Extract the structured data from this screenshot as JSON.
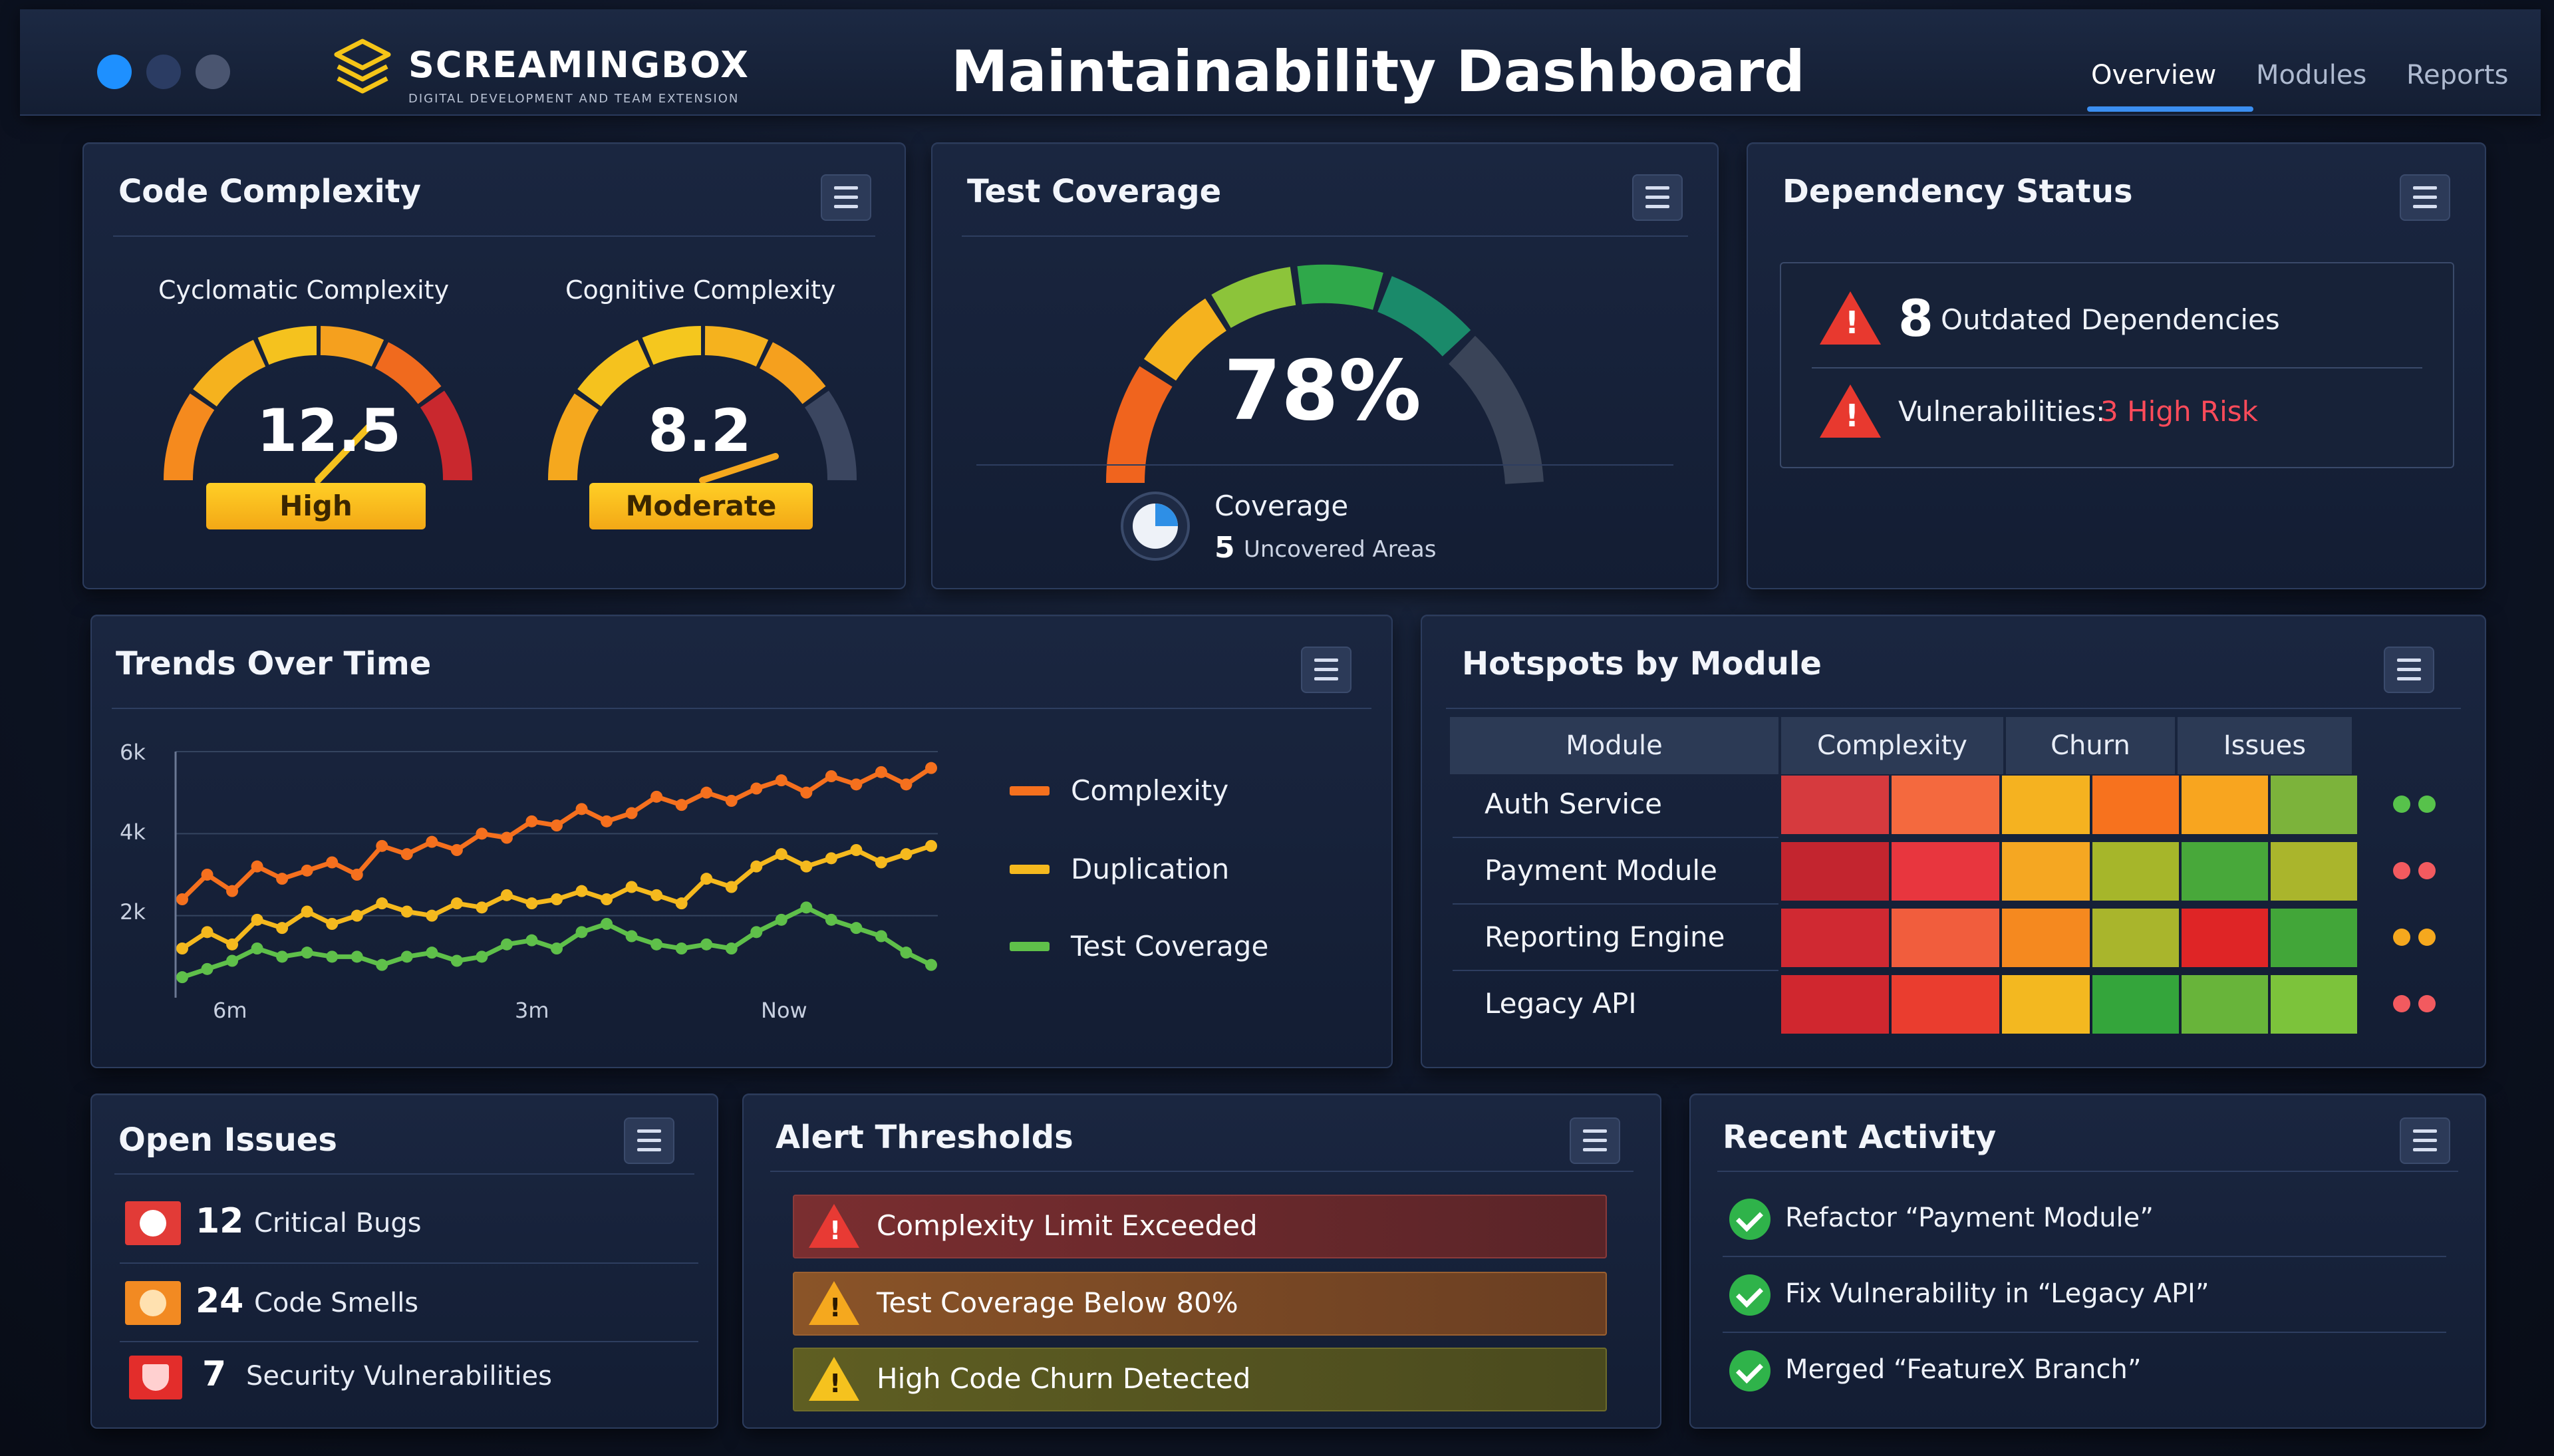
{
  "window": {
    "dots": [
      "#1e90ff",
      "#2b3c63",
      "#4a5570"
    ]
  },
  "brand": {
    "name": "SCREAMINGBOX",
    "tagline": "DIGITAL DEVELOPMENT AND TEAM EXTENSION",
    "logo_icon": "stacked-layers-icon",
    "accent": "#f5c518"
  },
  "title": "Maintainability Dashboard",
  "nav": {
    "tabs": [
      "Overview",
      "Modules",
      "Reports"
    ],
    "active": "Overview"
  },
  "complexity": {
    "title": "Code Complexity",
    "cyclomatic": {
      "label": "Cyclomatic Complexity",
      "value": "12.5",
      "status": "High"
    },
    "cognitive": {
      "label": "Cognitive Complexity",
      "value": "8.2",
      "status": "Moderate"
    }
  },
  "coverage": {
    "title": "Test Coverage",
    "value": "78%",
    "sub_label": "Coverage",
    "uncovered_count": "5",
    "uncovered_label": "Uncovered Areas",
    "icon": "pie-chart-icon"
  },
  "dependency": {
    "title": "Dependency Status",
    "outdated_count": "8",
    "outdated_label": "Outdated Dependencies",
    "vuln_label": "Vulnerabilities:",
    "vuln_value": "3 High Risk"
  },
  "trends": {
    "title": "Trends Over Time",
    "legend": [
      "Complexity",
      "Duplication",
      "Test Coverage"
    ]
  },
  "chart_data": {
    "type": "line",
    "yticks": [
      "6k",
      "4k",
      "2k"
    ],
    "xticks": [
      "6m",
      "3m",
      "Now"
    ],
    "ylim": [
      0,
      6000
    ],
    "series": [
      {
        "name": "Complexity",
        "color": "#f5701e",
        "values": [
          2400,
          3000,
          2600,
          3200,
          2900,
          3100,
          3300,
          3000,
          3700,
          3500,
          3800,
          3600,
          4000,
          3900,
          4300,
          4200,
          4600,
          4300,
          4500,
          4900,
          4700,
          5000,
          4800,
          5100,
          5300,
          5000,
          5400,
          5200,
          5500,
          5200,
          5600
        ]
      },
      {
        "name": "Duplication",
        "color": "#f5b91e",
        "values": [
          1200,
          1600,
          1300,
          1900,
          1700,
          2100,
          1800,
          2000,
          2300,
          2100,
          2000,
          2300,
          2200,
          2500,
          2300,
          2400,
          2600,
          2400,
          2700,
          2500,
          2300,
          2900,
          2700,
          3200,
          3500,
          3200,
          3400,
          3600,
          3300,
          3500,
          3700
        ]
      },
      {
        "name": "Test Coverage",
        "color": "#5fc04a",
        "values": [
          500,
          700,
          900,
          1200,
          1000,
          1100,
          1000,
          1000,
          800,
          1000,
          1100,
          900,
          1000,
          1300,
          1400,
          1200,
          1600,
          1800,
          1500,
          1300,
          1200,
          1300,
          1200,
          1600,
          1900,
          2200,
          1900,
          1700,
          1500,
          1100,
          800
        ]
      }
    ]
  },
  "hotspots": {
    "title": "Hotspots by Module",
    "columns": [
      "Module",
      "Complexity",
      "Churn",
      "Issues"
    ],
    "rows": [
      {
        "module": "Auth Service",
        "cells": [
          "#d63a3e",
          "#f4693e",
          "#f5b220",
          "#f7721e",
          "#f8a51f",
          "#7cb33b"
        ],
        "dots": [
          "#57c24b",
          "#57c24b"
        ]
      },
      {
        "module": "Payment Module",
        "cells": [
          "#c3252f",
          "#e8363e",
          "#f5a722",
          "#a6b62a",
          "#48a83a",
          "#aab52c"
        ],
        "dots": [
          "#f25a5f",
          "#f25a5f"
        ]
      },
      {
        "module": "Reporting Engine",
        "cells": [
          "#d02932",
          "#f15d3d",
          "#f5891f",
          "#a9b52c",
          "#df2526",
          "#42a639"
        ],
        "dots": [
          "#f5a81e",
          "#f5a81e"
        ]
      },
      {
        "module": "Legacy API",
        "cells": [
          "#d0272f",
          "#ea3d2f",
          "#f3b820",
          "#34a53b",
          "#68b43a",
          "#7cc33b"
        ],
        "dots": [
          "#f25a5f",
          "#f25a5f"
        ]
      }
    ]
  },
  "issues": {
    "title": "Open Issues",
    "items": [
      {
        "count": "12",
        "label": "Critical Bugs",
        "color": "#e23b37",
        "icon": "bug-icon"
      },
      {
        "count": "24",
        "label": "Code Smells",
        "color": "#f28a22",
        "icon": "smell-icon"
      },
      {
        "count": "7",
        "label": "Security Vulnerabilities",
        "color": "#e32d2b",
        "icon": "security-icon"
      }
    ]
  },
  "alerts": {
    "title": "Alert Thresholds",
    "items": [
      {
        "label": "Complexity Limit Exceeded",
        "color": "#6b2a2c",
        "icon_color": "#e83a34"
      },
      {
        "label": "Test Coverage Below 80%",
        "color": "#7a4a24",
        "icon_color": "#f5a81e"
      },
      {
        "label": "High Code Churn Detected",
        "color": "#5a5a22",
        "icon_color": "#f5c21e"
      }
    ]
  },
  "activity": {
    "title": "Recent Activity",
    "items": [
      "Refactor “Payment Module”",
      "Fix Vulnerability in “Legacy API”",
      "Merged “FeatureX Branch”"
    ]
  }
}
